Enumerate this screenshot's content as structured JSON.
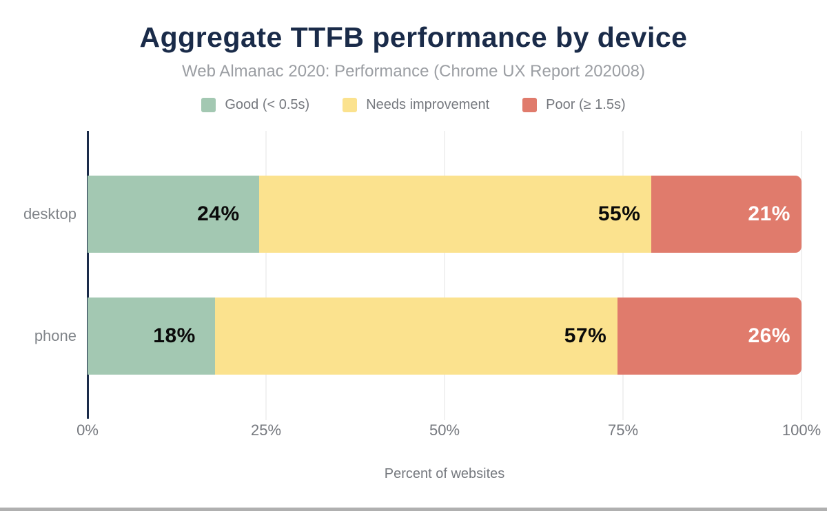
{
  "chart_data": {
    "type": "bar",
    "orientation": "horizontal",
    "stacked": true,
    "title": "Aggregate TTFB performance by device",
    "subtitle": "Web Almanac 2020: Performance (Chrome UX Report 202008)",
    "xlabel": "Percent of websites",
    "categories": [
      "desktop",
      "phone"
    ],
    "series": [
      {
        "key": "good",
        "name": "Good (< 0.5s)",
        "color": "#a3c8b2",
        "label_color": "#0a0a0a",
        "values": [
          24,
          18
        ]
      },
      {
        "key": "needs-improvement",
        "name": "Needs improvement",
        "color": "#fbe28e",
        "label_color": "#0a0a0a",
        "values": [
          55,
          57
        ]
      },
      {
        "key": "poor",
        "name": "Poor (≥ 1.5s)",
        "color": "#e07b6c",
        "label_color": "#ffffff",
        "values": [
          21,
          26
        ]
      }
    ],
    "value_suffix": "%",
    "x_ticks": [
      "0%",
      "25%",
      "50%",
      "75%",
      "100%"
    ],
    "xlim": [
      0,
      100
    ],
    "grid": true,
    "legend_position": "top",
    "colors": {
      "title": "#1a2b49",
      "axis_line": "#1a2b49",
      "gridline": "#f1f1f1",
      "tick_text": "#75787e",
      "subtitle_text": "#9b9ea3"
    }
  }
}
